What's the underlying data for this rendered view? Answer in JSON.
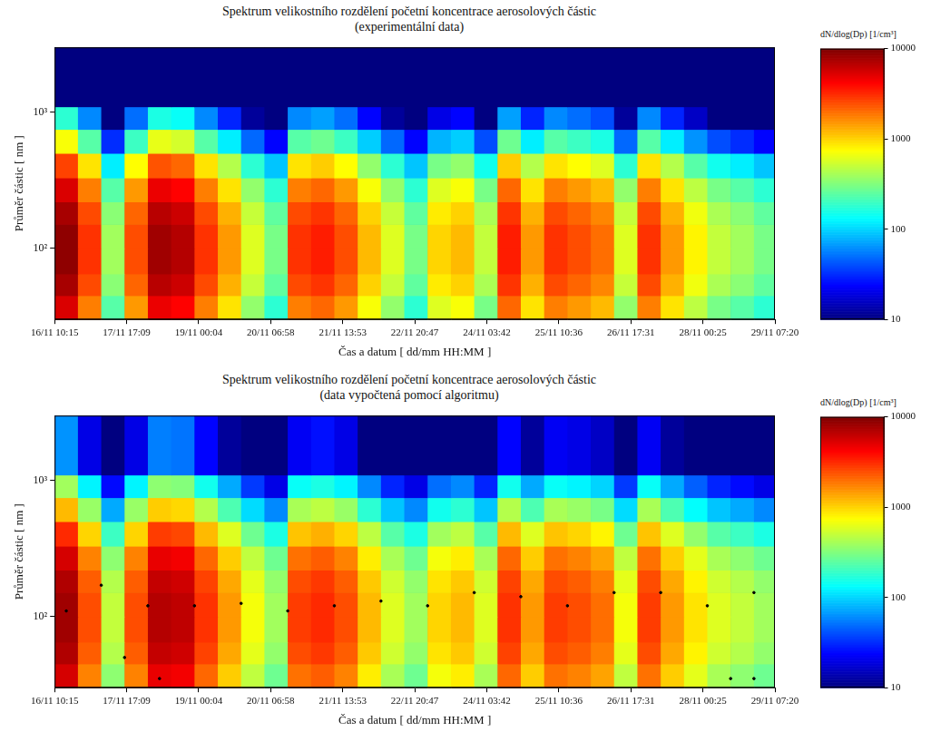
{
  "chart_data": [
    {
      "type": "heatmap",
      "title": "Spektrum velikostního rozdělení početní koncentrace aerosolových částic",
      "subtitle": "(experimentální data)",
      "x_label": "Čas a datum [ dd/mm HH:MM ]",
      "y_label": "Průměr částic [ nm ]",
      "log": "y",
      "grid": false,
      "xlim": [
        0,
        309
      ],
      "xticks": [
        {
          "value": 0,
          "label": "16/11 10:15"
        },
        {
          "value": 30.9,
          "label": "17/11 17:09"
        },
        {
          "value": 61.8,
          "label": "19/11 00:04"
        },
        {
          "value": 92.7,
          "label": "20/11 06:58"
        },
        {
          "value": 123.6,
          "label": "21/11 13:53"
        },
        {
          "value": 154.5,
          "label": "22/11 20:47"
        },
        {
          "value": 185.4,
          "label": "24/11 03:42"
        },
        {
          "value": 216.3,
          "label": "25/11 10:36"
        },
        {
          "value": 247.2,
          "label": "26/11 17:31"
        },
        {
          "value": 278.1,
          "label": "28/11 00:25"
        },
        {
          "value": 309,
          "label": "29/11 07:20"
        }
      ],
      "ylim": [
        30,
        3000
      ],
      "yticks": [
        {
          "value": 100,
          "label": "10²"
        },
        {
          "value": 1000,
          "label": "10³"
        }
      ],
      "x_edges": [
        0,
        10,
        20,
        30,
        40,
        50,
        60,
        70,
        80,
        90,
        100,
        110,
        120,
        130,
        140,
        150,
        160,
        170,
        180,
        190,
        200,
        210,
        220,
        230,
        240,
        250,
        260,
        270,
        280,
        290,
        300,
        309
      ],
      "y_edges": [
        30,
        45,
        65,
        100,
        150,
        220,
        330,
        500,
        750,
        1100,
        3000
      ],
      "cells": [
        [
          5400,
          1800,
          240,
          1500,
          4800,
          4200,
          1800,
          900,
          360,
          180,
          1800,
          2100,
          1500,
          720,
          360,
          180,
          600,
          720,
          300,
          2100,
          900,
          1800,
          1500,
          1200,
          360,
          1800,
          900,
          480,
          300,
          240,
          180
        ],
        [
          7650,
          2550,
          340,
          2125,
          6800,
          5950,
          2550,
          1275,
          510,
          255,
          2550,
          2975,
          2125,
          1020,
          510,
          255,
          850,
          1020,
          425,
          2975,
          1275,
          2550,
          2125,
          1700,
          510,
          2550,
          1275,
          680,
          425,
          340,
          255
        ],
        [
          9000,
          3000,
          400,
          2500,
          8000,
          7000,
          3000,
          1500,
          600,
          300,
          3000,
          3500,
          2500,
          1200,
          600,
          300,
          1000,
          1200,
          500,
          3500,
          1500,
          3000,
          2500,
          2000,
          600,
          3000,
          1500,
          800,
          500,
          400,
          300
        ],
        [
          9000,
          3000,
          400,
          2500,
          8000,
          7000,
          3000,
          1500,
          600,
          300,
          3000,
          3500,
          2500,
          1200,
          600,
          300,
          1000,
          1200,
          500,
          3500,
          1500,
          3000,
          2500,
          2000,
          600,
          3000,
          1500,
          800,
          500,
          400,
          300
        ],
        [
          7650,
          2550,
          340,
          2125,
          6800,
          5950,
          2550,
          1275,
          510,
          255,
          2550,
          2975,
          2125,
          1020,
          510,
          255,
          850,
          1020,
          425,
          2975,
          1275,
          2550,
          2125,
          1700,
          510,
          2550,
          1275,
          680,
          425,
          340,
          255
        ],
        [
          5400,
          1800,
          240,
          1500,
          4800,
          4200,
          1800,
          900,
          360,
          180,
          1800,
          2100,
          1500,
          720,
          360,
          180,
          600,
          720,
          300,
          2100,
          900,
          1800,
          1500,
          1200,
          360,
          1800,
          900,
          480,
          300,
          240,
          180
        ],
        [
          2700,
          900,
          120,
          750,
          2400,
          2100,
          900,
          450,
          180,
          90,
          900,
          1050,
          750,
          360,
          180,
          90,
          300,
          360,
          150,
          1050,
          450,
          900,
          750,
          600,
          180,
          900,
          450,
          240,
          150,
          120,
          90
        ],
        [
          720,
          240,
          32,
          200,
          640,
          560,
          240,
          120,
          48,
          24,
          240,
          280,
          200,
          96,
          48,
          24,
          80,
          96,
          40,
          280,
          120,
          240,
          200,
          160,
          48,
          240,
          120,
          64,
          40,
          32,
          24
        ],
        [
          180,
          60,
          8,
          50,
          160,
          140,
          60,
          30,
          12,
          6,
          60,
          70,
          50,
          24,
          12,
          6,
          20,
          24,
          10,
          70,
          30,
          60,
          50,
          40,
          12,
          60,
          30,
          16,
          10,
          8,
          6
        ],
        [
          1,
          1,
          1,
          1,
          1,
          1,
          1,
          1,
          1,
          1,
          1,
          1,
          1,
          1,
          1,
          1,
          1,
          1,
          1,
          1,
          1,
          1,
          1,
          1,
          1,
          1,
          1,
          1,
          1,
          1,
          1
        ]
      ],
      "colorbar": {
        "label": "dN/dlog(Dp) [1/cm³]",
        "lim": [
          10,
          10000
        ],
        "ticks": [
          10,
          100,
          1000,
          10000
        ]
      }
    },
    {
      "type": "heatmap",
      "title": "Spektrum velikostního rozdělení početní koncentrace aerosolových částic",
      "subtitle": "(data vypočtená pomocí algoritmu)",
      "x_label": "Čas a datum [ dd/mm HH:MM ]",
      "y_label": "Průměr částic [ nm ]",
      "log": "y",
      "grid": false,
      "xlim": [
        0,
        309
      ],
      "xticks": [
        {
          "value": 0,
          "label": "16/11 10:15"
        },
        {
          "value": 30.9,
          "label": "17/11 17:09"
        },
        {
          "value": 61.8,
          "label": "19/11 00:04"
        },
        {
          "value": 92.7,
          "label": "20/11 06:58"
        },
        {
          "value": 123.6,
          "label": "21/11 13:53"
        },
        {
          "value": 154.5,
          "label": "22/11 20:47"
        },
        {
          "value": 185.4,
          "label": "24/11 03:42"
        },
        {
          "value": 216.3,
          "label": "25/11 10:36"
        },
        {
          "value": 247.2,
          "label": "26/11 17:31"
        },
        {
          "value": 278.1,
          "label": "28/11 00:25"
        },
        {
          "value": 309,
          "label": "29/11 07:20"
        }
      ],
      "ylim": [
        30,
        3000
      ],
      "yticks": [
        {
          "value": 100,
          "label": "10²"
        },
        {
          "value": 1000,
          "label": "10³"
        }
      ],
      "x_edges": [
        0,
        10,
        20,
        30,
        40,
        50,
        60,
        70,
        80,
        90,
        100,
        110,
        120,
        130,
        140,
        150,
        160,
        170,
        180,
        190,
        200,
        210,
        220,
        230,
        240,
        250,
        260,
        270,
        280,
        290,
        300,
        309
      ],
      "y_edges": [
        30,
        45,
        65,
        100,
        150,
        220,
        330,
        500,
        750,
        1100,
        3000
      ],
      "cells": [
        [
          5600,
          1750,
          350,
          1750,
          4900,
          4550,
          2100,
          1050,
          490,
          280,
          1960,
          2240,
          1750,
          840,
          420,
          280,
          700,
          840,
          420,
          2100,
          1050,
          1960,
          1750,
          1400,
          490,
          1960,
          1050,
          630,
          420,
          350,
          280
        ],
        [
          7200,
          2250,
          450,
          2250,
          6300,
          5850,
          2700,
          1350,
          630,
          360,
          2520,
          2880,
          2250,
          1080,
          540,
          360,
          900,
          1080,
          540,
          2700,
          1350,
          2520,
          2250,
          1800,
          630,
          2520,
          1350,
          810,
          540,
          450,
          360
        ],
        [
          8000,
          2500,
          500,
          2500,
          7000,
          6500,
          3000,
          1500,
          700,
          400,
          2800,
          3200,
          2500,
          1200,
          600,
          400,
          1000,
          1200,
          600,
          3000,
          1500,
          2800,
          2500,
          2000,
          700,
          2800,
          1500,
          900,
          600,
          500,
          400
        ],
        [
          8000,
          2500,
          500,
          2500,
          7000,
          6500,
          3000,
          1500,
          700,
          400,
          2800,
          3200,
          2500,
          1200,
          600,
          400,
          1000,
          1200,
          600,
          3000,
          1500,
          2800,
          2500,
          2000,
          700,
          2800,
          1500,
          900,
          600,
          500,
          400
        ],
        [
          7200,
          2250,
          450,
          2250,
          6300,
          5850,
          2700,
          1350,
          630,
          360,
          2520,
          2880,
          2250,
          1080,
          540,
          360,
          900,
          1080,
          540,
          2700,
          1350,
          2520,
          2250,
          1800,
          630,
          2520,
          1350,
          810,
          540,
          450,
          360
        ],
        [
          5600,
          1750,
          350,
          1750,
          4900,
          4550,
          2100,
          1050,
          490,
          280,
          1960,
          2240,
          1750,
          840,
          420,
          280,
          700,
          840,
          420,
          2100,
          1050,
          1960,
          1750,
          1400,
          490,
          1960,
          1050,
          630,
          420,
          350,
          280
        ],
        [
          3200,
          1000,
          200,
          1000,
          2800,
          2600,
          1200,
          600,
          280,
          160,
          1120,
          1280,
          1000,
          480,
          240,
          160,
          400,
          480,
          240,
          1200,
          600,
          1120,
          1000,
          800,
          280,
          1120,
          600,
          360,
          240,
          200,
          160
        ],
        [
          1200,
          375,
          75,
          375,
          1050,
          975,
          450,
          225,
          105,
          60,
          420,
          480,
          375,
          180,
          90,
          60,
          150,
          180,
          90,
          450,
          225,
          420,
          375,
          300,
          105,
          420,
          225,
          135,
          90,
          75,
          60
        ],
        [
          400,
          125,
          25,
          125,
          350,
          325,
          150,
          75,
          35,
          20,
          140,
          160,
          125,
          60,
          30,
          20,
          50,
          60,
          30,
          150,
          75,
          140,
          125,
          100,
          35,
          140,
          75,
          45,
          30,
          25,
          20
        ],
        [
          64,
          20,
          4,
          20,
          56,
          52,
          24,
          12,
          6,
          3,
          22,
          26,
          20,
          10,
          5,
          3,
          8,
          10,
          5,
          24,
          12,
          22,
          20,
          16,
          6,
          22,
          12,
          7,
          5,
          4,
          3
        ]
      ],
      "series": [
        {
          "type": "scatter",
          "marker": "dot",
          "color": "#000000",
          "x": [
            5,
            20,
            40,
            60,
            80,
            100,
            120,
            140,
            160,
            180,
            200,
            220,
            240,
            260,
            280,
            300,
            290,
            300,
            30,
            45
          ],
          "values": [
            110,
            170,
            120,
            120,
            125,
            110,
            120,
            130,
            120,
            150,
            140,
            120,
            150,
            150,
            120,
            150,
            35,
            35,
            50,
            35
          ]
        }
      ],
      "colorbar": {
        "label": "dN/dlog(Dp) [1/cm³]",
        "lim": [
          10,
          10000
        ],
        "ticks": [
          10,
          100,
          1000,
          10000
        ]
      }
    }
  ]
}
